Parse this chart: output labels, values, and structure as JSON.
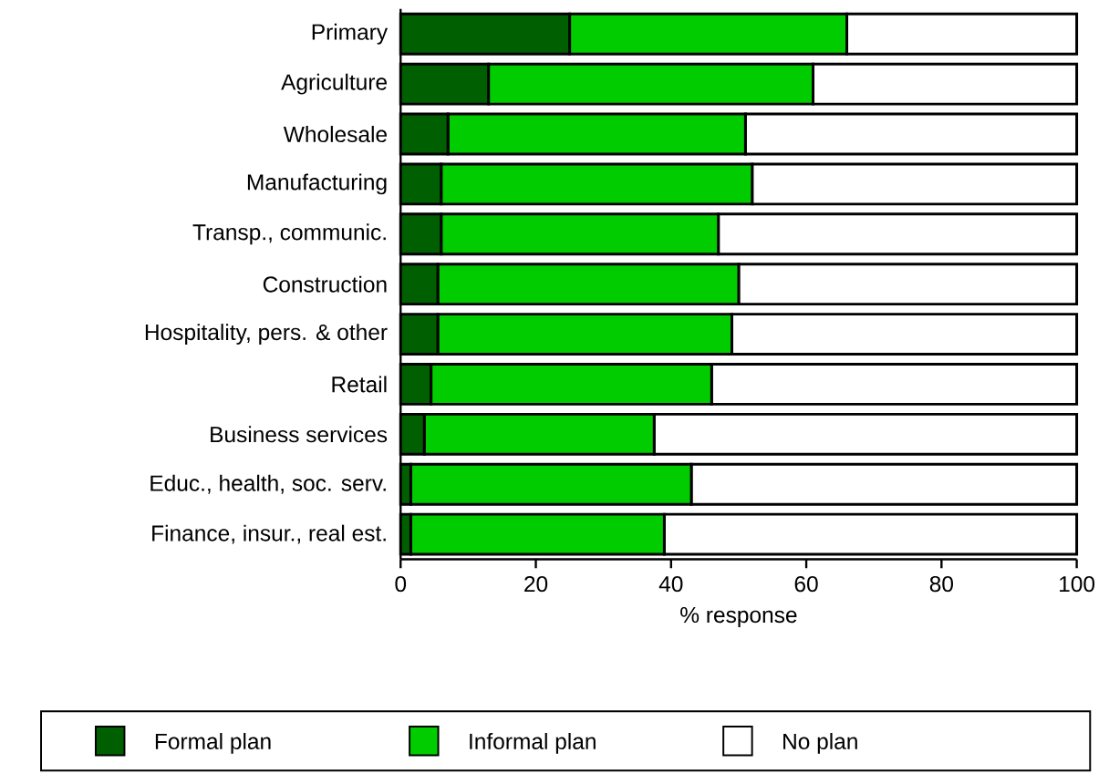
{
  "chart_data": {
    "type": "bar",
    "orientation": "horizontal",
    "stacked": true,
    "categories": [
      "Primary",
      "Agriculture",
      "Wholesale",
      "Manufacturing",
      "Transp., communic.",
      "Construction",
      "Hospitality, pers. & other",
      "Retail",
      "Business services",
      "Educ., health, soc. serv.",
      "Finance, insur., real est."
    ],
    "series": [
      {
        "name": "Formal plan",
        "color": "#005f00",
        "values": [
          25,
          13,
          7,
          6,
          6,
          5.5,
          5.5,
          4.5,
          3.5,
          1.5,
          1.5
        ]
      },
      {
        "name": "Informal plan",
        "color": "#00cc00",
        "values": [
          41,
          48,
          44,
          46,
          41,
          44.5,
          43.5,
          41.5,
          34,
          41.5,
          37.5
        ]
      },
      {
        "name": "No plan",
        "color": "#ffffff",
        "values": [
          34,
          39,
          49,
          48,
          53,
          50,
          51,
          54,
          62.5,
          57,
          61
        ]
      }
    ],
    "xlim": [
      0,
      100
    ],
    "xticks": [
      0,
      20,
      40,
      60,
      80,
      100
    ],
    "xlabel": "% response",
    "legend": "bottom"
  }
}
